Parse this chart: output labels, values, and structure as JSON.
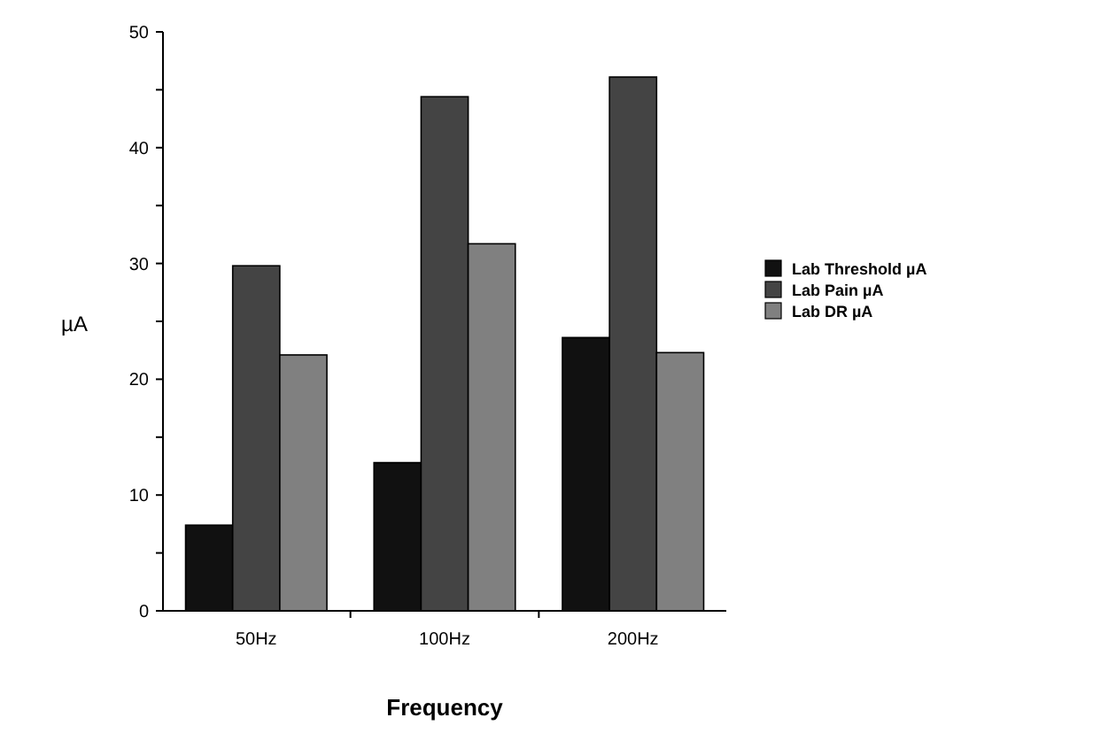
{
  "chart_data": {
    "type": "bar",
    "xlabel": "Frequency",
    "ylabel": "µA",
    "categories": [
      "50Hz",
      "100Hz",
      "200Hz"
    ],
    "series": [
      {
        "name": "Lab Threshold µA",
        "color": "#111111",
        "values": [
          7.4,
          12.8,
          23.6
        ]
      },
      {
        "name": "Lab Pain µA",
        "color": "#444444",
        "values": [
          29.8,
          44.4,
          46.1
        ]
      },
      {
        "name": "Lab DR µA",
        "color": "#808080",
        "values": [
          22.1,
          31.7,
          22.3
        ]
      }
    ],
    "ylim": [
      0,
      50
    ],
    "yticks": [
      0,
      {
        "value": 5,
        "label": null
      },
      10,
      {
        "value": 15,
        "label": null
      },
      20,
      {
        "value": 25,
        "label": null
      },
      30,
      {
        "value": 35,
        "label": null
      },
      40,
      {
        "value": 45,
        "label": null
      },
      50
    ],
    "grid": false,
    "legend": "right"
  }
}
